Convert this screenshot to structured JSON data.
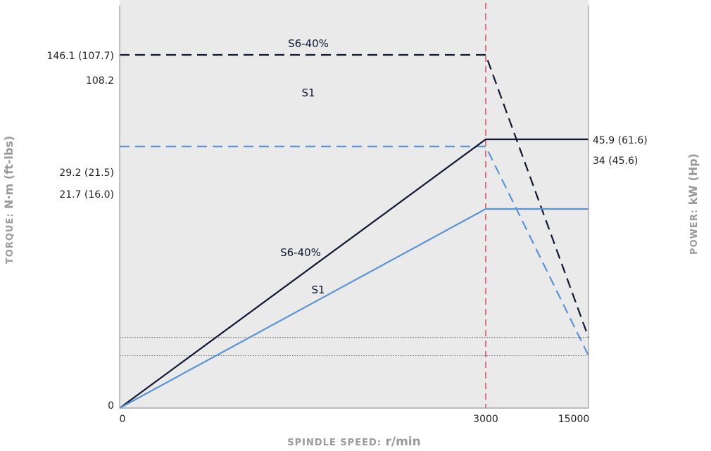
{
  "chart_data": {
    "type": "line",
    "xlabel": {
      "prefix": "SPINDLE SPEED: ",
      "unit": "r/min"
    },
    "ylabel_left": {
      "prefix": "TORQUE: ",
      "unit": "N·m (ft-lbs)"
    },
    "ylabel_right": {
      "prefix": "POWER: ",
      "unit": "kW (Hp)"
    },
    "x_ticks": [
      {
        "label": "0",
        "value": 0
      },
      {
        "label": "3000",
        "value": 3000
      },
      {
        "label": "15000",
        "value": 15000
      }
    ],
    "y_ticks_left": [
      {
        "label": "146.1 (107.7)",
        "value": 146.1
      },
      {
        "label": "108.2",
        "value": 108.2
      },
      {
        "label": "29.2 (21.5)",
        "value": 29.2
      },
      {
        "label": "21.7 (16.0)",
        "value": 21.7
      },
      {
        "label": "0",
        "value": 0
      }
    ],
    "y_ticks_right": [
      {
        "label": "45.9 (61.6)",
        "value": 45.9
      },
      {
        "label": "34 (45.6)",
        "value": 34
      }
    ],
    "series": [
      {
        "name": "S6-40%",
        "quantity": "torque",
        "style": "dashed",
        "color": "#0f1733",
        "points": [
          [
            0,
            146.1
          ],
          [
            3000,
            146.1
          ],
          [
            15000,
            29.2
          ]
        ]
      },
      {
        "name": "S1",
        "quantity": "torque",
        "style": "dashed",
        "color": "#5b93d3",
        "points": [
          [
            0,
            108.2
          ],
          [
            3000,
            108.2
          ],
          [
            15000,
            21.7
          ]
        ]
      },
      {
        "name": "S6-40%",
        "quantity": "power",
        "style": "solid",
        "color": "#0f1733",
        "points": [
          [
            0,
            0
          ],
          [
            3000,
            45.9
          ],
          [
            15000,
            45.9
          ]
        ]
      },
      {
        "name": "S1",
        "quantity": "power",
        "style": "solid",
        "color": "#5b93d3",
        "points": [
          [
            0,
            0
          ],
          [
            3000,
            34
          ],
          [
            15000,
            34
          ]
        ]
      }
    ],
    "reference_line": {
      "x": 3000,
      "color": "#e0405a",
      "style": "dashed"
    },
    "grid_lines_y_left": [
      29.2,
      21.7
    ],
    "plot_background": "#eaeaea",
    "label_color": "#9a9a9a"
  }
}
